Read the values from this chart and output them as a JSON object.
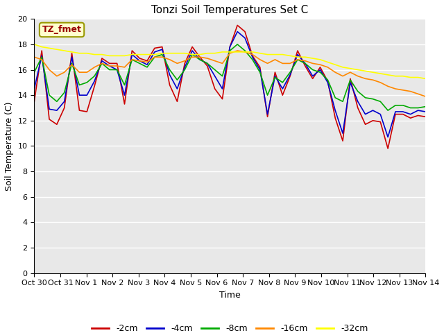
{
  "title": "Tonzi Soil Temperatures Set C",
  "xlabel": "Time",
  "ylabel": "Soil Temperature (C)",
  "annotation": "TZ_fmet",
  "ylim": [
    0,
    20
  ],
  "yticks": [
    0,
    2,
    4,
    6,
    8,
    10,
    12,
    14,
    16,
    18,
    20
  ],
  "x_labels": [
    "Oct 30",
    "Oct 31",
    "Nov 1",
    "Nov 2",
    "Nov 3",
    "Nov 4",
    "Nov 5",
    "Nov 6",
    "Nov 7",
    "Nov 8",
    "Nov 9",
    "Nov 10",
    "Nov 11",
    "Nov 12",
    "Nov 13",
    "Nov 14"
  ],
  "colors": {
    "-2cm": "#cc0000",
    "-4cm": "#0000cc",
    "-8cm": "#00aa00",
    "-16cm": "#ff8800",
    "-32cm": "#ffff00"
  },
  "series": {
    "-2cm": [
      13.5,
      17.5,
      12.1,
      11.7,
      13.0,
      17.3,
      12.8,
      12.7,
      14.7,
      16.9,
      16.5,
      16.5,
      13.3,
      17.5,
      16.9,
      16.7,
      17.7,
      17.8,
      14.8,
      13.5,
      16.5,
      17.8,
      17.0,
      16.3,
      14.5,
      13.7,
      17.8,
      19.5,
      19.0,
      17.1,
      16.2,
      12.3,
      15.8,
      14.0,
      15.5,
      17.5,
      16.3,
      15.3,
      16.2,
      15.1,
      12.2,
      10.4,
      15.3,
      13.0,
      11.7,
      12.0,
      11.9,
      9.8,
      12.5,
      12.5,
      12.2,
      12.4,
      12.3
    ],
    "-4cm": [
      14.5,
      17.1,
      12.9,
      12.8,
      13.5,
      17.0,
      14.0,
      14.0,
      15.1,
      16.7,
      16.3,
      16.0,
      14.0,
      17.2,
      16.7,
      16.4,
      17.4,
      17.6,
      15.6,
      14.5,
      16.2,
      17.5,
      16.8,
      16.5,
      15.5,
      14.5,
      17.8,
      19.0,
      18.5,
      17.0,
      16.0,
      12.5,
      15.5,
      14.5,
      15.6,
      17.2,
      16.5,
      15.5,
      16.0,
      15.0,
      12.8,
      11.0,
      15.0,
      13.5,
      12.5,
      12.8,
      12.5,
      10.7,
      12.7,
      12.7,
      12.5,
      12.8,
      12.7
    ],
    "-8cm": [
      15.8,
      17.0,
      14.0,
      13.5,
      14.2,
      16.5,
      14.8,
      15.0,
      15.5,
      16.5,
      16.0,
      16.0,
      14.8,
      16.8,
      16.5,
      16.2,
      17.0,
      17.2,
      16.0,
      15.2,
      16.0,
      17.2,
      16.8,
      16.5,
      16.0,
      15.5,
      17.5,
      18.0,
      17.5,
      16.8,
      15.8,
      14.0,
      15.4,
      15.0,
      15.8,
      16.8,
      16.5,
      16.0,
      15.8,
      15.2,
      13.8,
      13.5,
      15.2,
      14.3,
      13.8,
      13.7,
      13.5,
      12.8,
      13.2,
      13.2,
      13.0,
      13.0,
      13.1
    ],
    "-16cm": [
      17.0,
      16.8,
      16.0,
      15.5,
      15.8,
      16.4,
      15.8,
      15.8,
      16.2,
      16.5,
      16.3,
      16.3,
      16.2,
      16.8,
      16.7,
      16.6,
      17.0,
      17.0,
      16.8,
      16.5,
      16.7,
      17.0,
      17.0,
      16.9,
      16.7,
      16.5,
      17.3,
      17.5,
      17.4,
      17.2,
      16.8,
      16.5,
      16.8,
      16.5,
      16.5,
      16.8,
      16.7,
      16.5,
      16.4,
      16.2,
      15.8,
      15.5,
      15.8,
      15.5,
      15.3,
      15.2,
      15.0,
      14.7,
      14.5,
      14.4,
      14.3,
      14.1,
      13.9
    ],
    "-32cm": [
      18.0,
      17.8,
      17.7,
      17.6,
      17.5,
      17.4,
      17.3,
      17.3,
      17.2,
      17.2,
      17.1,
      17.1,
      17.1,
      17.2,
      17.2,
      17.2,
      17.2,
      17.3,
      17.3,
      17.3,
      17.3,
      17.2,
      17.2,
      17.3,
      17.3,
      17.4,
      17.4,
      17.4,
      17.4,
      17.4,
      17.3,
      17.2,
      17.2,
      17.2,
      17.1,
      17.0,
      17.0,
      16.9,
      16.8,
      16.6,
      16.4,
      16.2,
      16.1,
      16.0,
      15.9,
      15.8,
      15.7,
      15.6,
      15.5,
      15.5,
      15.4,
      15.4,
      15.3
    ]
  },
  "fig_bg": "#ffffff",
  "plot_bg": "#e8e8e8",
  "grid_color": "#ffffff",
  "title_fontsize": 11,
  "axis_label_fontsize": 9,
  "tick_fontsize": 8
}
